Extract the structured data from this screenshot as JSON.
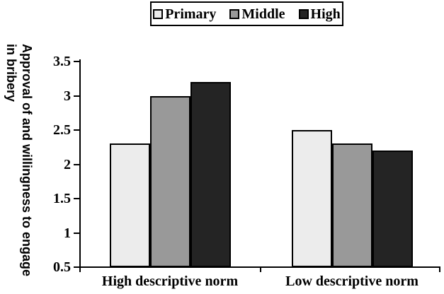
{
  "figure": {
    "background": "#ffffff",
    "axis_color": "#000000",
    "text_color": "#000000"
  },
  "chart_data": {
    "type": "bar",
    "title": "",
    "categories": [
      "High descriptive norm",
      "Low descriptive norm"
    ],
    "series": [
      {
        "name": "Primary",
        "color": "#ececec",
        "values": [
          2.3,
          2.5
        ]
      },
      {
        "name": "Middle",
        "color": "#999999",
        "values": [
          3.0,
          2.3
        ]
      },
      {
        "name": "High",
        "color": "#242424",
        "values": [
          3.2,
          2.2
        ]
      }
    ],
    "xlabel": "",
    "ylabel": "Approval of and willingness to engage in bribery",
    "ylabel_lines": [
      "Approval of and willingness to engage",
      "in bribery"
    ],
    "yticks": [
      0.5,
      1,
      1.5,
      2,
      2.5,
      3,
      3.5
    ],
    "ytick_labels": [
      "0.5",
      "1",
      "1.5",
      "2",
      "2.5",
      "3",
      "3.5"
    ],
    "ylim": [
      0.5,
      3.5
    ],
    "legend_position": "top",
    "legend_labels": [
      "Primary",
      "Middle",
      "High"
    ],
    "grid": false
  }
}
